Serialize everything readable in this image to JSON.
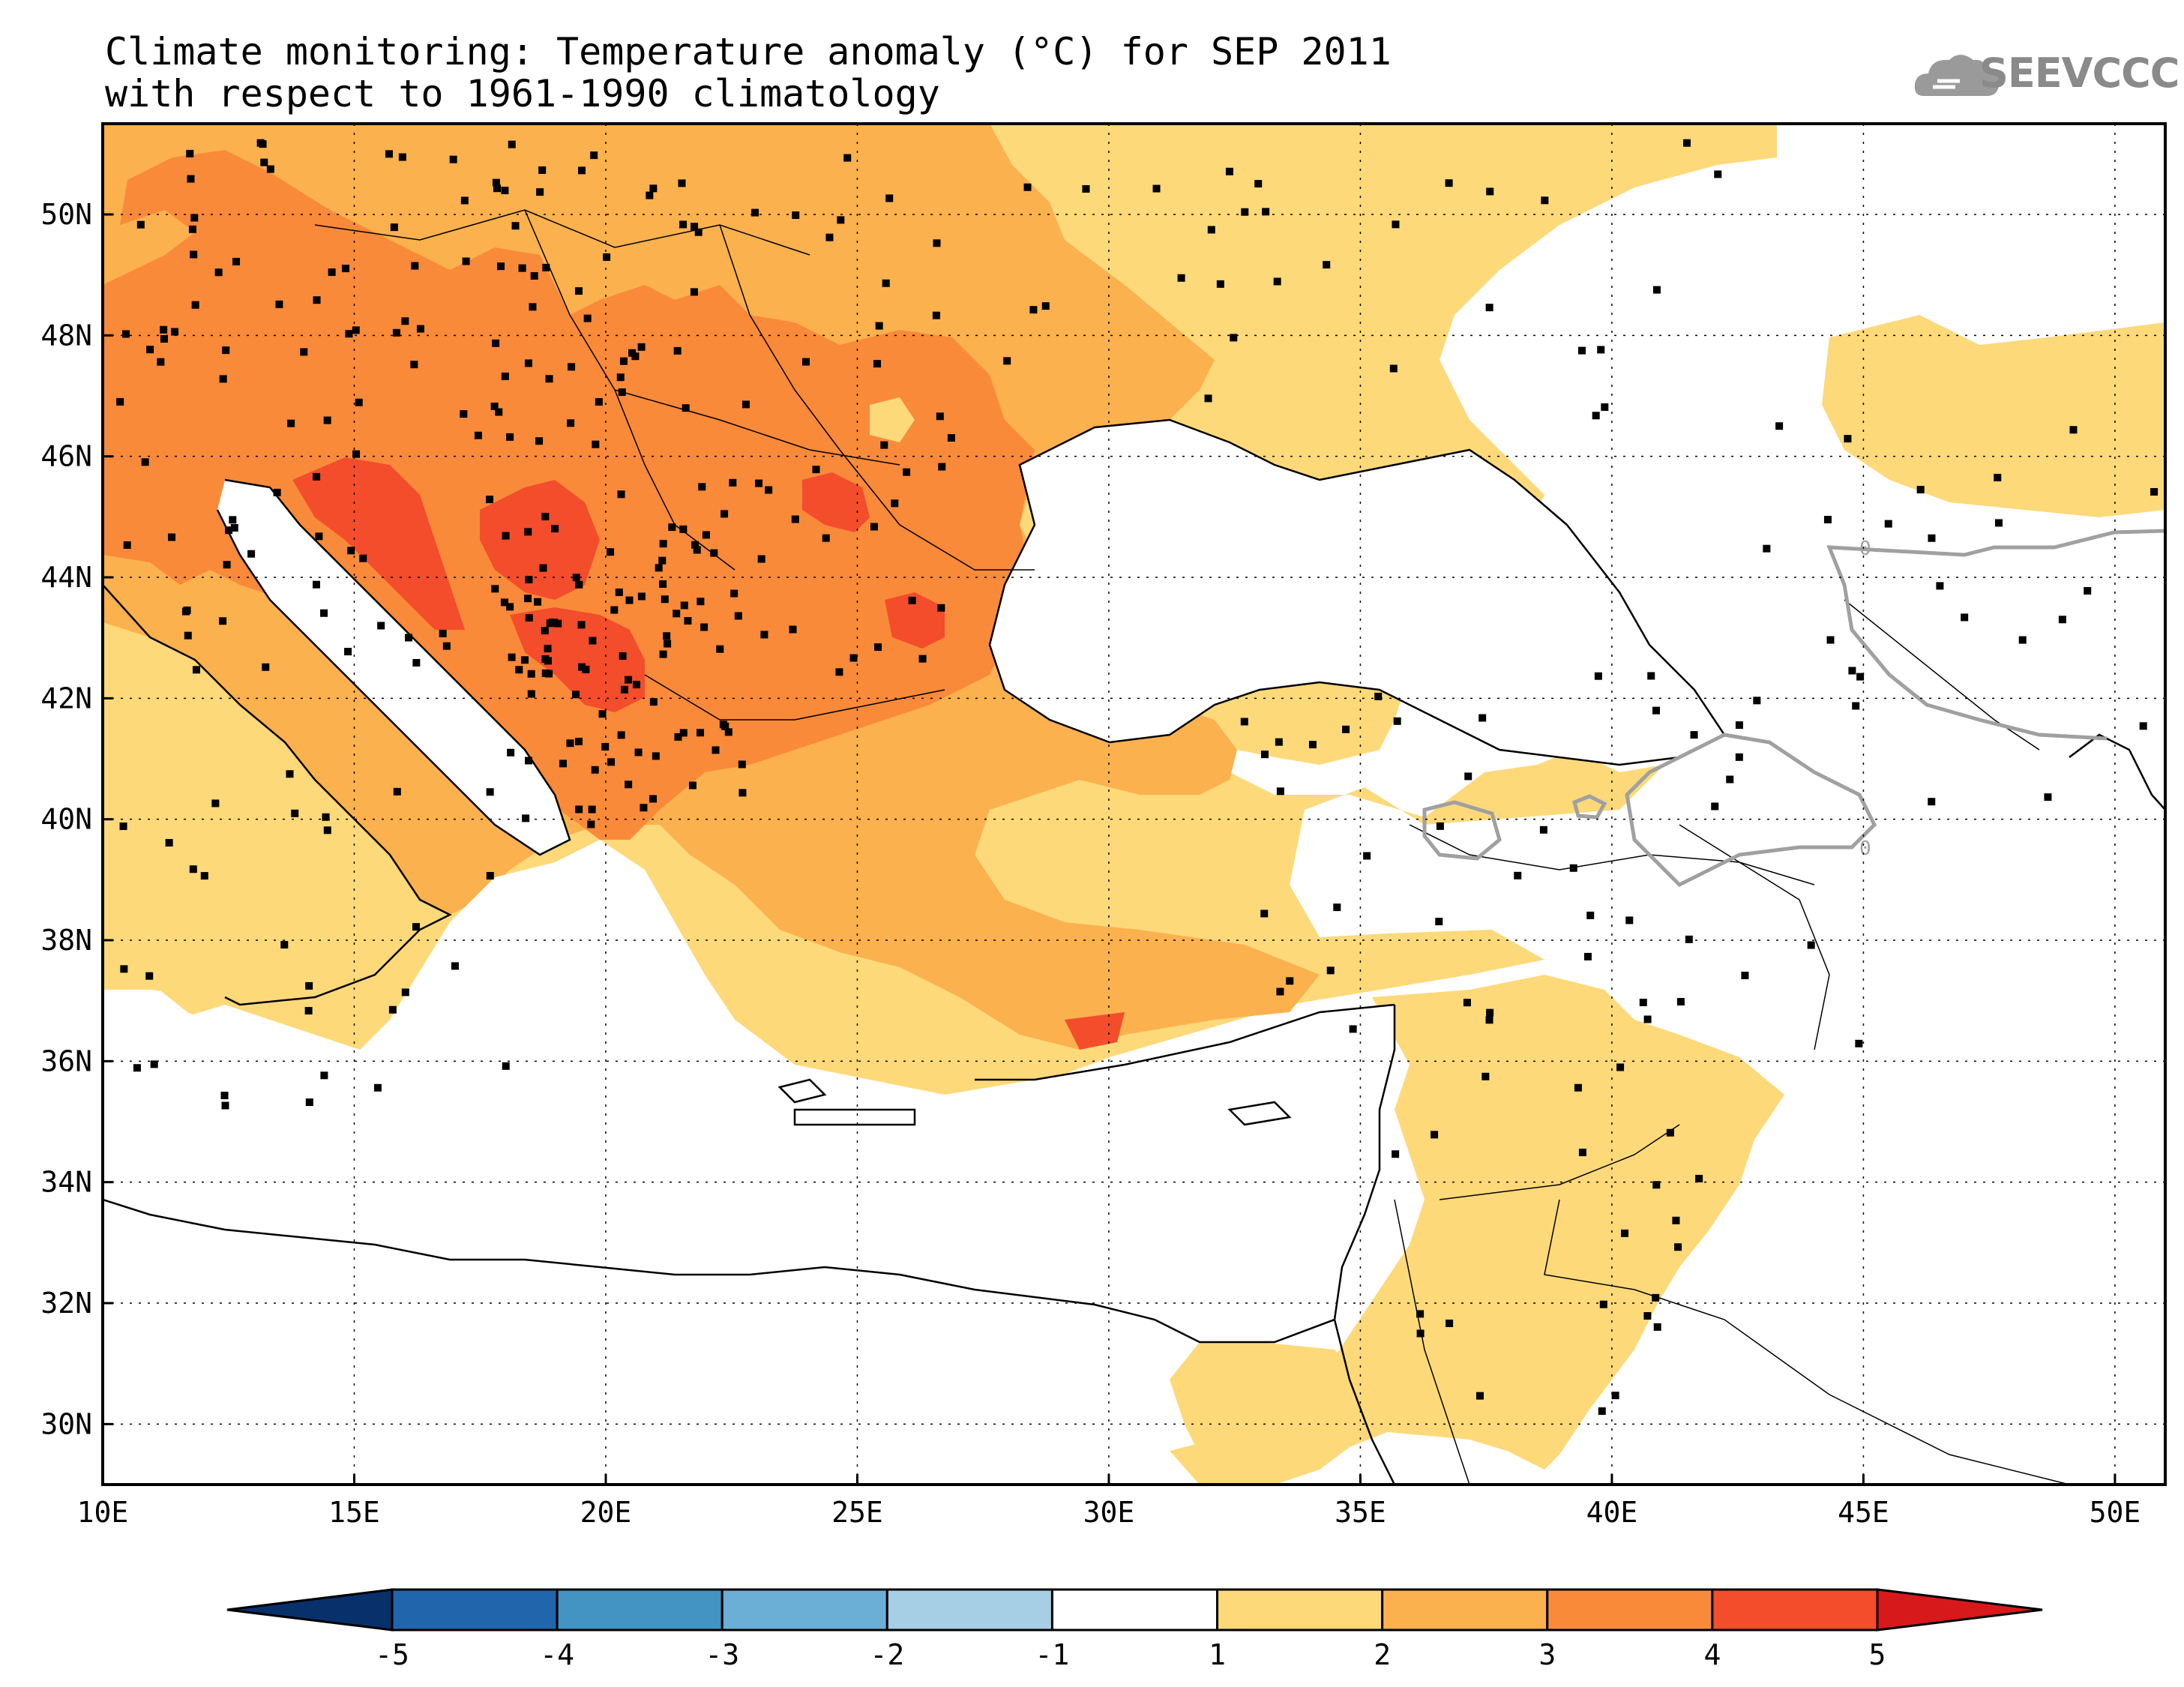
{
  "title": {
    "line1": "Climate monitoring: Temperature anomaly (°C) for SEP 2011",
    "line2": "with respect to 1961-1990 climatology"
  },
  "logo": {
    "text": "SEEVCCC",
    "icon": "cloud-icon",
    "color": "#8a8a8a"
  },
  "map": {
    "lon_range": [
      10,
      51
    ],
    "lat_range": [
      29,
      51.5
    ],
    "x_ticks": [
      "10E",
      "15E",
      "20E",
      "25E",
      "30E",
      "35E",
      "40E",
      "45E",
      "50E"
    ],
    "y_ticks": [
      "50N",
      "48N",
      "46N",
      "44N",
      "42N",
      "40N",
      "38N",
      "36N",
      "34N",
      "32N",
      "30N"
    ],
    "contour_label": "0"
  },
  "colorbar": {
    "labels": [
      "-5",
      "-4",
      "-3",
      "-2",
      "-1",
      "1",
      "2",
      "3",
      "4",
      "5"
    ],
    "colors": [
      "#08306b",
      "#2166ac",
      "#4393c3",
      "#6baed6",
      "#a6cfe6",
      "#ffffff",
      "#fdd97a",
      "#fbb14e",
      "#f98a3a",
      "#f34d2b",
      "#d7191c"
    ]
  },
  "colors": {
    "anom_1_2": "#fdd97a",
    "anom_2_3": "#fbb14e",
    "anom_3_4": "#f98a3a",
    "anom_4_5": "#f34d2b",
    "zero_contour": "#a0a0a0"
  }
}
